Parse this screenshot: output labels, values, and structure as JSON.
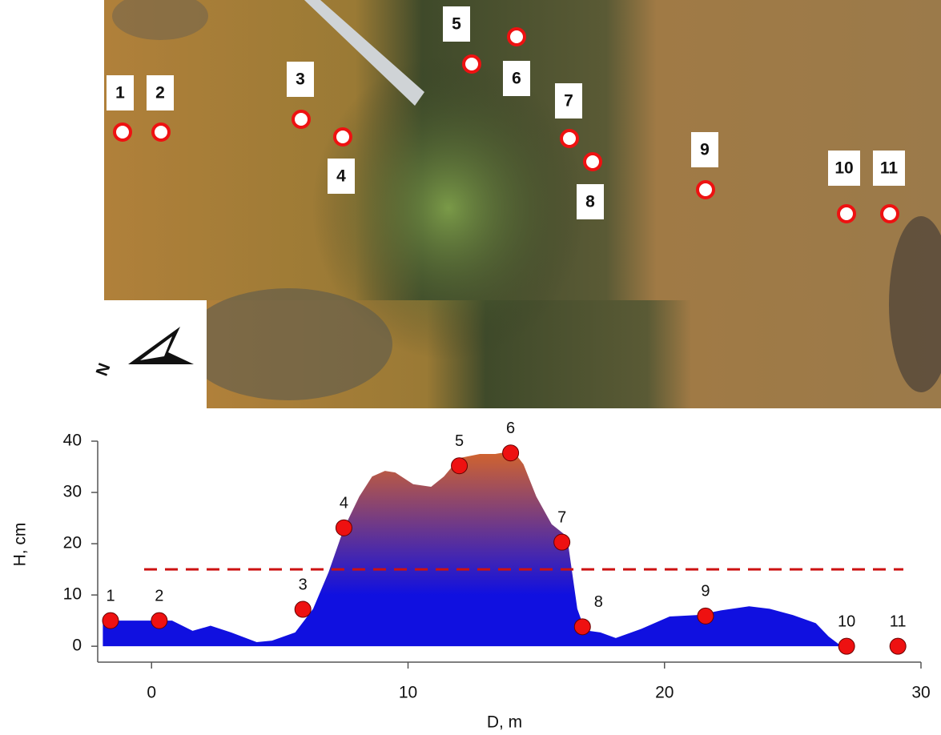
{
  "photo": {
    "north_label": "N"
  },
  "chart_data": {
    "type": "area",
    "x_label": "D, m",
    "y_label": "H, cm",
    "xlim": [
      -2.1,
      30
    ],
    "ylim": [
      -3.1,
      40
    ],
    "xticks": [
      0,
      10,
      20,
      30
    ],
    "yticks": [
      0,
      10,
      20,
      30,
      40
    ],
    "profile": {
      "x": [
        -1.9,
        0.8,
        1.6,
        2.3,
        3.1,
        4.1,
        4.7,
        5.6,
        6.3,
        6.9,
        7.5,
        8.1,
        8.6,
        9.1,
        9.5,
        10.2,
        10.9,
        11.4,
        12.0,
        12.8,
        13.4,
        14.1,
        14.5,
        15.0,
        15.6,
        16.2,
        16.6,
        16.9,
        17.5,
        18.1,
        19.1,
        20.2,
        21.3,
        22.2,
        23.3,
        24.1,
        25.0,
        25.9,
        26.4,
        26.9,
        29.2
      ],
      "y": [
        5,
        5,
        3,
        4,
        2.7,
        0.8,
        1.1,
        2.7,
        7.3,
        14.4,
        23,
        29.2,
        33.1,
        34.2,
        33.9,
        31.6,
        31.1,
        33.1,
        36.7,
        37.5,
        37.5,
        38.1,
        35.5,
        29.2,
        23.8,
        21.4,
        7.3,
        3.1,
        2.7,
        1.6,
        3.4,
        5.8,
        6.1,
        7,
        7.8,
        7.3,
        6.1,
        4.5,
        1.9,
        0,
        0
      ],
      "color_bottom": "#1010e0",
      "color_top": "#e06a20"
    },
    "points": {
      "labels": [
        "1",
        "2",
        "3",
        "4",
        "5",
        "6",
        "7",
        "8",
        "9",
        "10",
        "11"
      ],
      "x": [
        -1.6,
        0.3,
        5.9,
        7.5,
        12.0,
        14.0,
        16.0,
        16.8,
        21.6,
        27.1,
        29.1
      ],
      "y": [
        5,
        5,
        7.2,
        23.1,
        35.2,
        37.7,
        20.3,
        3.8,
        5.9,
        0,
        0
      ],
      "color": "#ee1111"
    },
    "threshold": {
      "value": 15,
      "color": "#cc1111"
    }
  }
}
